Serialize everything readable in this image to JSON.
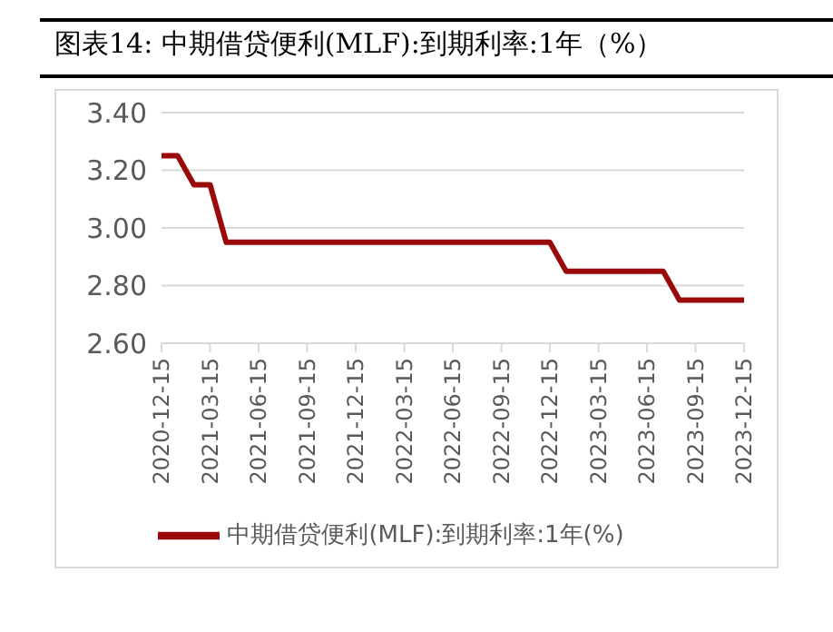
{
  "chart_data": {
    "type": "line",
    "title": "图表14:  中期借贷便利(MLF):到期利率:1年（%）",
    "categories": [
      "2020-12-15",
      null,
      null,
      "2021-03-15",
      null,
      null,
      "2021-06-15",
      null,
      null,
      "2021-09-15",
      null,
      null,
      "2021-12-15",
      null,
      null,
      "2022-03-15",
      null,
      null,
      "2022-06-15",
      null,
      null,
      "2022-09-15",
      null,
      null,
      "2022-12-15",
      null,
      null,
      "2023-03-15",
      null,
      null,
      "2023-06-15",
      null,
      null,
      "2023-09-15",
      null,
      null,
      "2023-12-15"
    ],
    "series": [
      {
        "name": "中期借贷便利(MLF):到期利率:1年(%)",
        "color": "#9b0a0a",
        "values": [
          3.25,
          3.25,
          3.15,
          3.15,
          2.95,
          2.95,
          2.95,
          2.95,
          2.95,
          2.95,
          2.95,
          2.95,
          2.95,
          2.95,
          2.95,
          2.95,
          2.95,
          2.95,
          2.95,
          2.95,
          2.95,
          2.95,
          2.95,
          2.95,
          2.95,
          2.85,
          2.85,
          2.85,
          2.85,
          2.85,
          2.85,
          2.85,
          2.75,
          2.75,
          2.75,
          2.75,
          2.75
        ]
      }
    ],
    "ylim": [
      2.6,
      3.4
    ],
    "yticks": [
      {
        "value": 2.6,
        "label": "2.60"
      },
      {
        "value": 2.8,
        "label": "2.80"
      },
      {
        "value": 3.0,
        "label": "3.00"
      },
      {
        "value": 3.2,
        "label": "3.20"
      },
      {
        "value": 3.4,
        "label": "3.40"
      }
    ],
    "grid": "y",
    "legend": "bottom",
    "marker": "none",
    "line_style": "solid"
  }
}
